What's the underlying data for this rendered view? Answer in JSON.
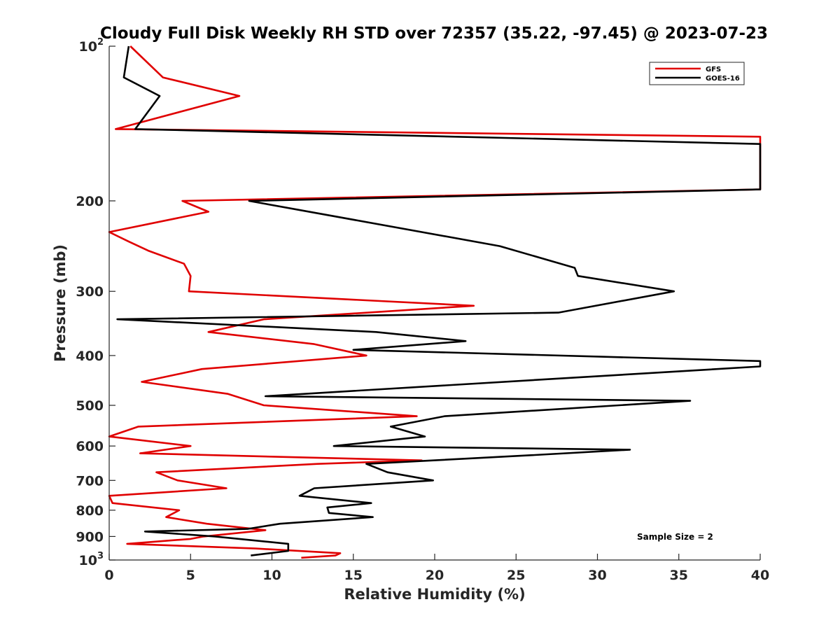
{
  "chart_data": {
    "type": "line",
    "title": "Cloudy Full Disk Weekly RH STD over 72357 (35.22, -97.45) @ 2023-07-23",
    "xlabel": "Relative Humidity (%)",
    "ylabel": "Pressure (mb)",
    "xlim": [
      0,
      40
    ],
    "ylim": [
      100,
      1000
    ],
    "yscale": "log",
    "y_reversed": true,
    "x_ticks": [
      "0",
      "5",
      "10",
      "15",
      "20",
      "25",
      "30",
      "35",
      "40"
    ],
    "x_tick_values": [
      0,
      5,
      10,
      15,
      20,
      25,
      30,
      35,
      40
    ],
    "y_ticks": [
      {
        "value": 100,
        "base": "10",
        "exp": "2"
      },
      {
        "value": 200,
        "base": "200",
        "exp": ""
      },
      {
        "value": 300,
        "base": "300",
        "exp": ""
      },
      {
        "value": 400,
        "base": "400",
        "exp": ""
      },
      {
        "value": 500,
        "base": "500",
        "exp": ""
      },
      {
        "value": 600,
        "base": "600",
        "exp": ""
      },
      {
        "value": 700,
        "base": "700",
        "exp": ""
      },
      {
        "value": 800,
        "base": "800",
        "exp": ""
      },
      {
        "value": 900,
        "base": "900",
        "exp": ""
      },
      {
        "value": 1000,
        "base": "10",
        "exp": "3"
      }
    ],
    "grid": false,
    "legend_position": "top-right",
    "annotation": "Sample Size = 2",
    "series": [
      {
        "name": "GFS",
        "color": "#e00000",
        "points": [
          [
            1.3,
            100
          ],
          [
            3.3,
            115
          ],
          [
            8.0,
            125
          ],
          [
            0.4,
            145
          ],
          [
            40.0,
            150
          ],
          [
            40.0,
            190
          ],
          [
            4.5,
            200
          ],
          [
            6.1,
            210
          ],
          [
            0.0,
            230
          ],
          [
            1.2,
            240
          ],
          [
            2.4,
            250
          ],
          [
            4.6,
            265
          ],
          [
            5.0,
            280
          ],
          [
            4.9,
            300
          ],
          [
            22.4,
            320
          ],
          [
            9.5,
            340
          ],
          [
            6.1,
            360
          ],
          [
            12.6,
            380
          ],
          [
            15.8,
            400
          ],
          [
            5.7,
            425
          ],
          [
            2.0,
            450
          ],
          [
            7.3,
            475
          ],
          [
            9.5,
            500
          ],
          [
            18.9,
            525
          ],
          [
            1.8,
            550
          ],
          [
            0.0,
            575
          ],
          [
            5.0,
            600
          ],
          [
            1.9,
            620
          ],
          [
            19.2,
            640
          ],
          [
            12.8,
            650
          ],
          [
            2.9,
            675
          ],
          [
            4.2,
            700
          ],
          [
            7.2,
            725
          ],
          [
            0.0,
            750
          ],
          [
            0.2,
            775
          ],
          [
            4.3,
            800
          ],
          [
            3.5,
            825
          ],
          [
            6.0,
            850
          ],
          [
            9.6,
            875
          ],
          [
            5.8,
            900
          ],
          [
            5.0,
            910
          ],
          [
            1.1,
            930
          ],
          [
            9.0,
            950
          ],
          [
            14.2,
            970
          ],
          [
            13.9,
            980
          ],
          [
            11.8,
            990
          ]
        ]
      },
      {
        "name": "GOES-16",
        "color": "#000000",
        "points": [
          [
            1.2,
            100
          ],
          [
            0.9,
            115
          ],
          [
            3.1,
            125
          ],
          [
            1.6,
            145
          ],
          [
            40.0,
            155
          ],
          [
            40.0,
            190
          ],
          [
            8.6,
            200
          ],
          [
            24.0,
            245
          ],
          [
            28.6,
            270
          ],
          [
            28.8,
            280
          ],
          [
            34.7,
            300
          ],
          [
            27.6,
            330
          ],
          [
            0.5,
            340
          ],
          [
            16.4,
            360
          ],
          [
            21.9,
            375
          ],
          [
            15.0,
            390
          ],
          [
            40.0,
            410
          ],
          [
            40.0,
            420
          ],
          [
            9.6,
            480
          ],
          [
            35.7,
            490
          ],
          [
            20.6,
            525
          ],
          [
            17.3,
            550
          ],
          [
            19.4,
            575
          ],
          [
            13.8,
            600
          ],
          [
            32.0,
            610
          ],
          [
            26.0,
            625
          ],
          [
            15.8,
            650
          ],
          [
            17.1,
            675
          ],
          [
            19.9,
            700
          ],
          [
            12.6,
            725
          ],
          [
            11.7,
            750
          ],
          [
            16.1,
            775
          ],
          [
            13.4,
            790
          ],
          [
            13.5,
            810
          ],
          [
            16.2,
            825
          ],
          [
            10.5,
            850
          ],
          [
            8.5,
            870
          ],
          [
            2.2,
            880
          ],
          [
            6.5,
            900
          ],
          [
            11.0,
            930
          ],
          [
            11.0,
            960
          ],
          [
            8.7,
            980
          ]
        ]
      }
    ]
  }
}
